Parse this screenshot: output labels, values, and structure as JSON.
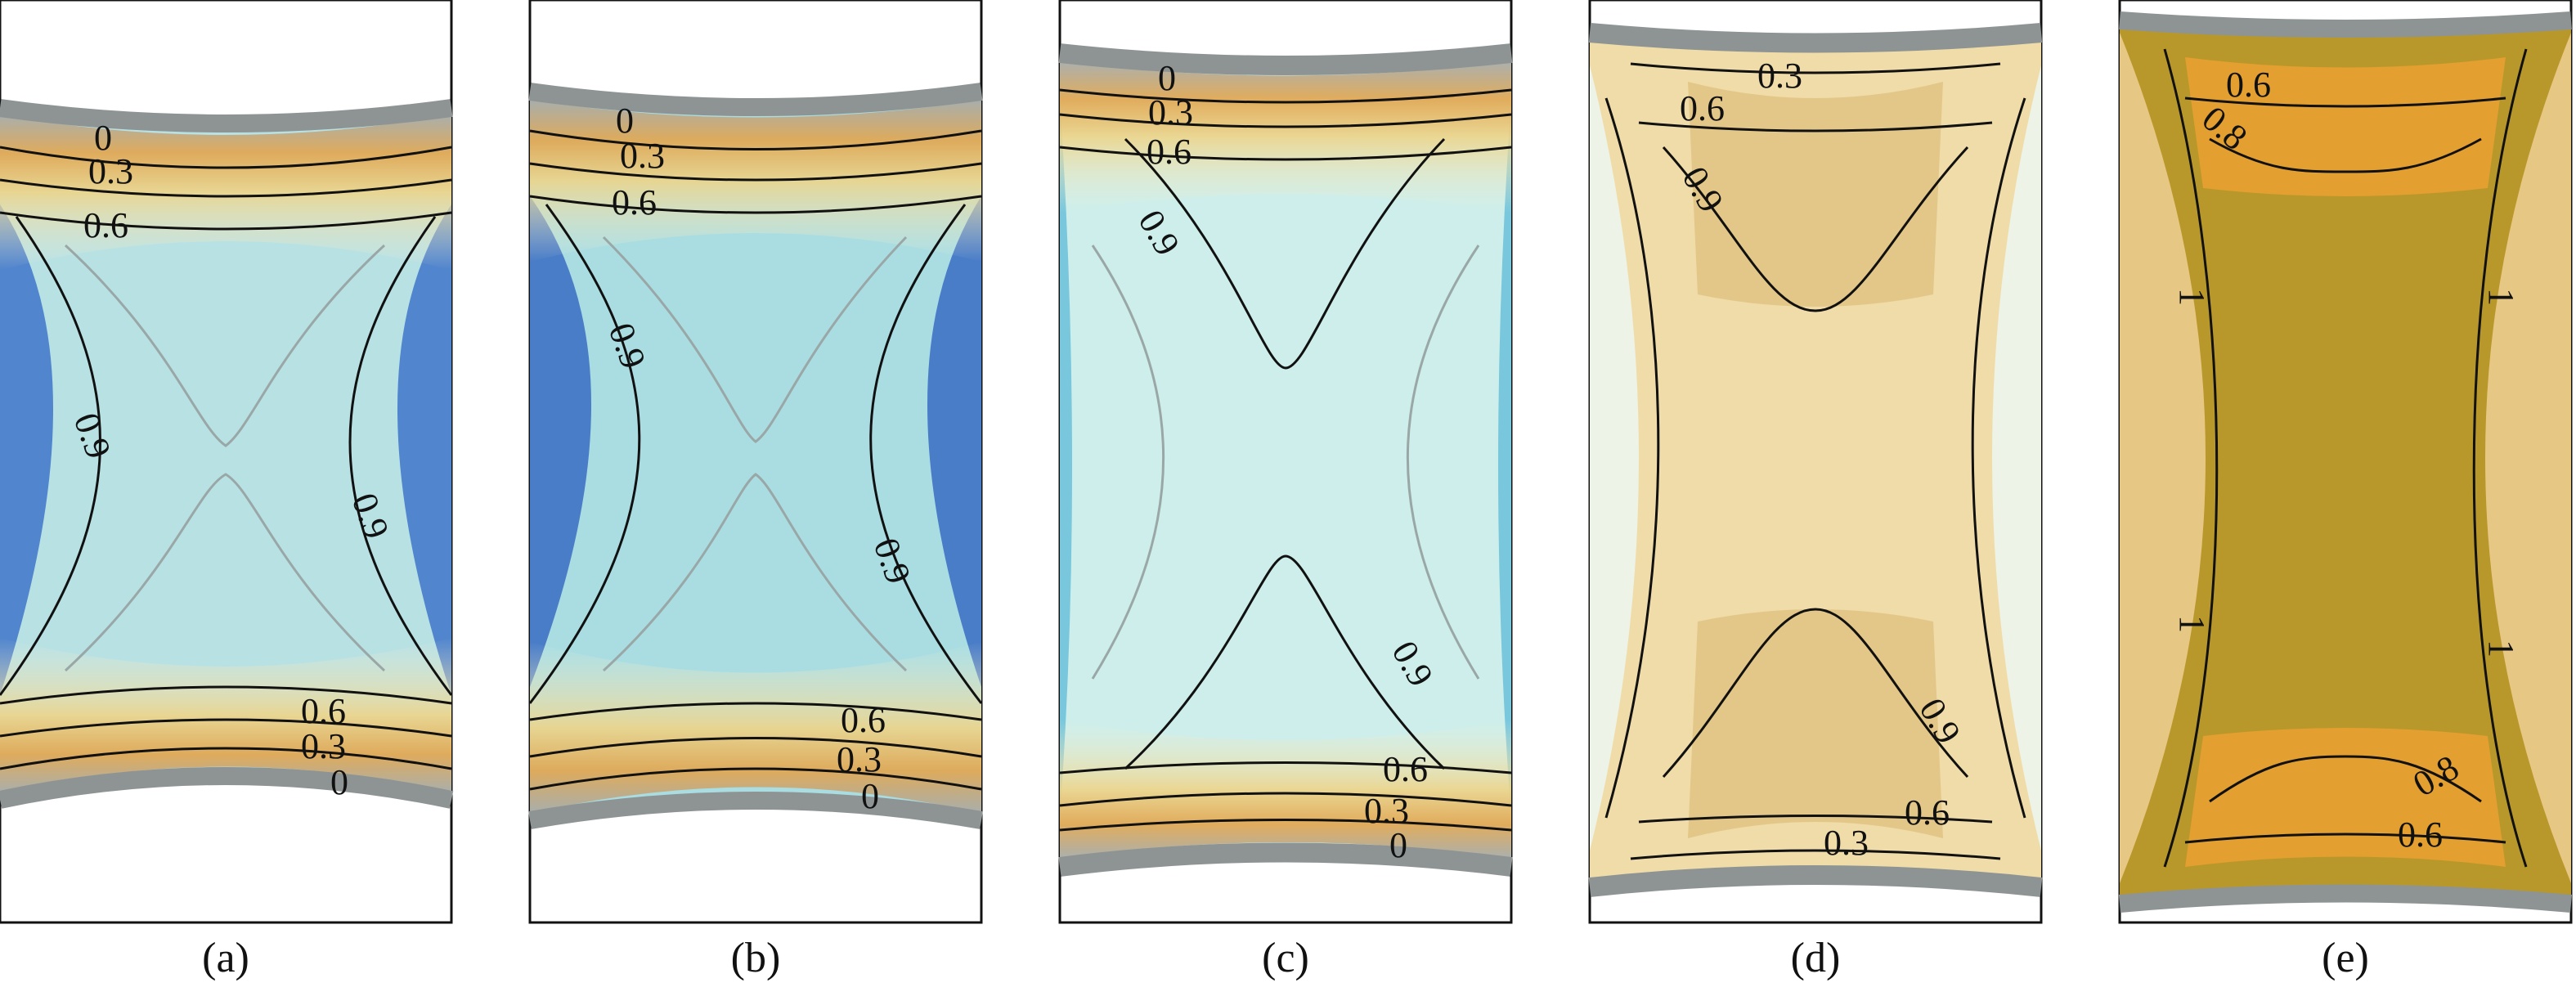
{
  "panels": [
    {
      "id": "a",
      "caption": "(a)",
      "labels": {
        "l0": "0",
        "l03": "0.3",
        "l06": "0.6",
        "l09": "0.9",
        "b0": "0",
        "b03": "0.3",
        "b06": "0.6",
        "side_left": "0.9",
        "side_right": "0.9"
      },
      "colors": {
        "edge": "#9ea4a4",
        "band": "#e8a74a",
        "fill": "#b7e0e3",
        "side": "#3e74c9"
      }
    },
    {
      "id": "b",
      "caption": "(b)",
      "labels": {
        "l0": "0",
        "l03": "0.3",
        "l06": "0.6",
        "l09": "0.9",
        "b0": "0",
        "b03": "0.3",
        "b06": "0.6",
        "side_left": "0.9",
        "side_right": "0.9"
      },
      "colors": {
        "edge": "#9ea4a4",
        "band": "#e8a74a",
        "fill": "#a9dde2",
        "side": "#3a6cc3"
      }
    },
    {
      "id": "c",
      "caption": "(c)",
      "labels": {
        "l0": "0",
        "l03": "0.3",
        "l06": "0.6",
        "l09": "0.9",
        "b0": "0",
        "b03": "0.3",
        "b06": "0.6",
        "side_left": "",
        "side_right": "0.9"
      },
      "colors": {
        "edge": "#9ea4a4",
        "band": "#e8a74a",
        "fill": "#cdeeea",
        "side": "#79c7dc"
      }
    },
    {
      "id": "d",
      "caption": "(d)",
      "labels": {
        "l0": "",
        "l03": "0.3",
        "l06": "0.6",
        "l09": "0.9",
        "b0": "",
        "b03": "0.3",
        "b06": "0.6",
        "side_left": "",
        "side_right": "0.9"
      },
      "colors": {
        "edge": "#9ea4a4",
        "band": "#d4a24a",
        "fill": "#f0dca8",
        "side": "#edf3e6"
      }
    },
    {
      "id": "e",
      "caption": "(e)",
      "labels": {
        "l0": "",
        "l03": "0.6",
        "l06": "0.8",
        "l09": "1",
        "b0": "",
        "b03": "0.6",
        "b06": "0.8",
        "side_left": "1",
        "side_right": "1"
      },
      "colors": {
        "edge": "#9ea4a4",
        "band": "#eaa030",
        "fill": "#b8982b",
        "side": "#e7c784"
      }
    }
  ]
}
